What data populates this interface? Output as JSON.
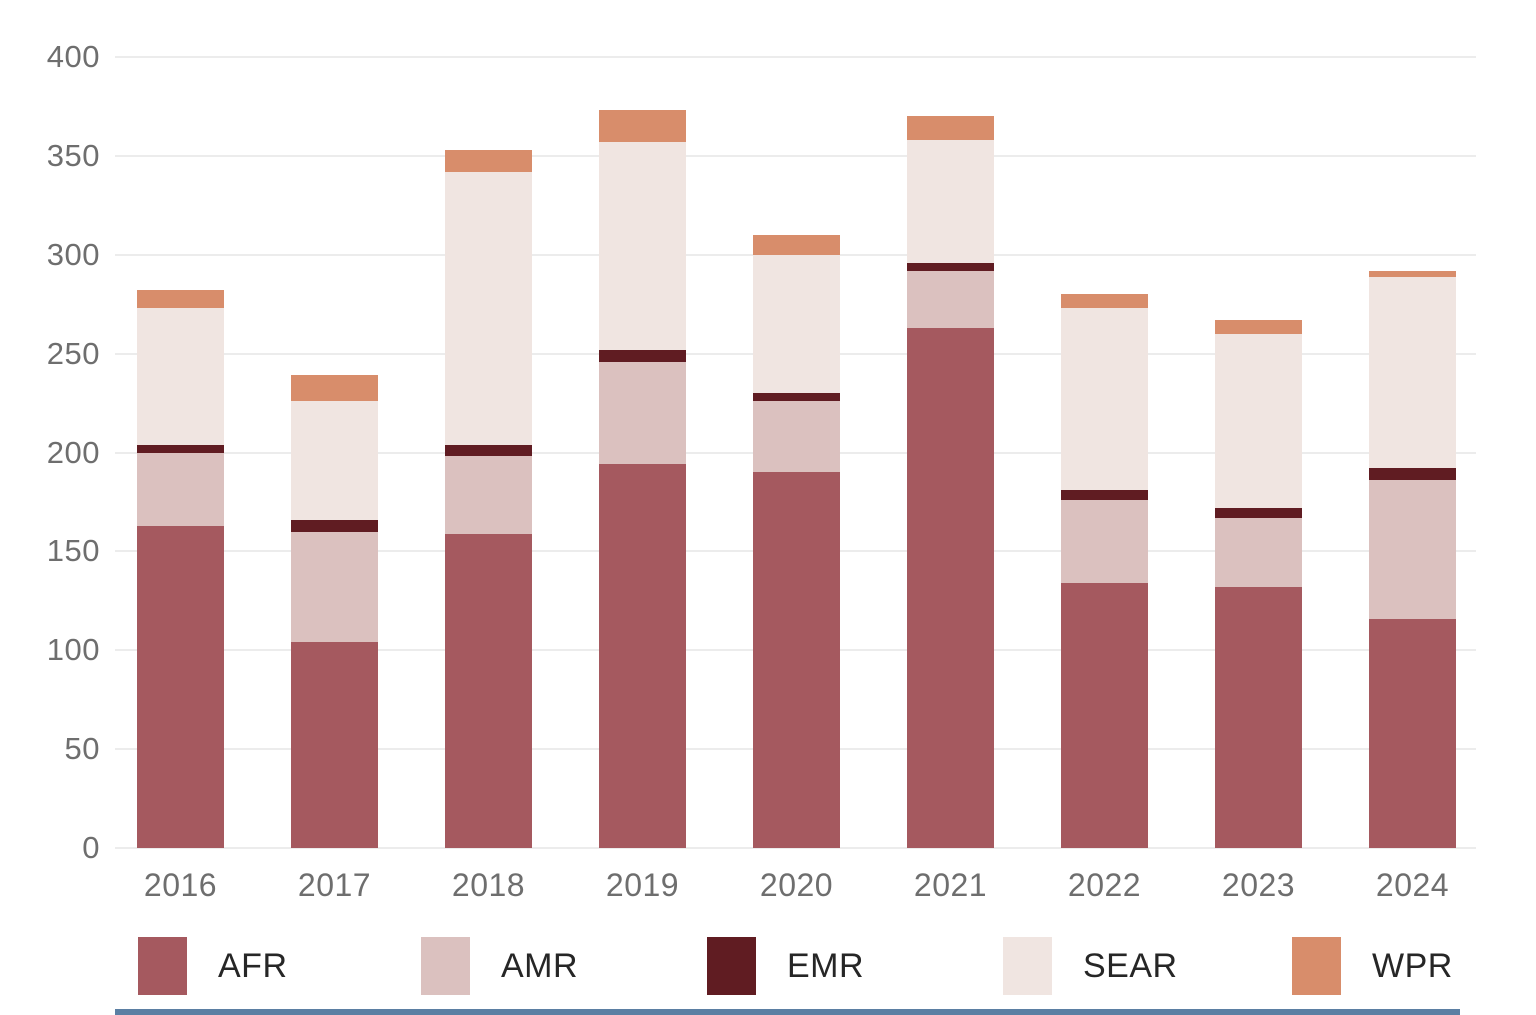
{
  "chart_data": {
    "type": "bar",
    "stacked": true,
    "title": "",
    "xlabel": "",
    "ylabel": "",
    "categories": [
      "2016",
      "2017",
      "2018",
      "2019",
      "2020",
      "2021",
      "2022",
      "2023",
      "2024"
    ],
    "series": [
      {
        "name": "AFR",
        "color": "#a5595f",
        "values": [
          163,
          104,
          159,
          194,
          190,
          263,
          134,
          132,
          116
        ]
      },
      {
        "name": "AMR",
        "color": "#dbc1bf",
        "values": [
          37,
          56,
          39,
          52,
          36,
          29,
          42,
          35,
          70
        ]
      },
      {
        "name": "EMR",
        "color": "#601c22",
        "values": [
          4,
          6,
          6,
          6,
          4,
          4,
          5,
          5,
          6
        ]
      },
      {
        "name": "SEAR",
        "color": "#f0e5e1",
        "values": [
          69,
          60,
          138,
          105,
          70,
          62,
          92,
          88,
          97
        ]
      },
      {
        "name": "WPR",
        "color": "#d88d6b",
        "values": [
          9,
          13,
          11,
          16,
          10,
          12,
          7,
          7,
          3
        ]
      }
    ],
    "stack_totals": [
      282,
      239,
      353,
      373,
      310,
      370,
      280,
      267,
      292
    ],
    "ylim": [
      0,
      400
    ],
    "y_ticks": [
      "0",
      "50",
      "100",
      "150",
      "200",
      "250",
      "300",
      "350",
      "400"
    ],
    "grid": true,
    "legend_position": "bottom",
    "legend_entries": [
      "AFR",
      "AMR",
      "EMR",
      "SEAR",
      "WPR"
    ],
    "axis_label_color": "#6e6e6e",
    "gridline_color": "#ececec",
    "bottom_rule_color": "#5b7fa3"
  }
}
